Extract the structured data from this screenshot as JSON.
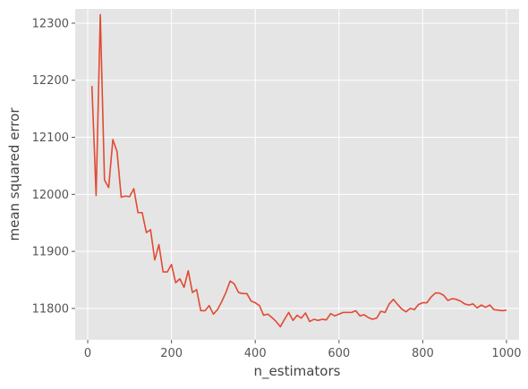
{
  "chart_data": {
    "type": "line",
    "title": "",
    "xlabel": "n_estimators",
    "ylabel": "mean squared error",
    "xlim": [
      -30,
      1030
    ],
    "ylim": [
      11745,
      12325
    ],
    "xticks": [
      0,
      200,
      400,
      600,
      800,
      1000
    ],
    "yticks": [
      11800,
      11900,
      12000,
      12100,
      12200,
      12300
    ],
    "grid": true,
    "legend": "none",
    "style": {
      "background": "#e5e5e5",
      "grid_color": "#ffffff",
      "line_color": "#e24a33"
    },
    "series": [
      {
        "x": [
          10,
          20,
          30,
          40,
          50,
          60,
          70,
          80,
          90,
          100,
          110,
          120,
          130,
          140,
          150,
          160,
          170,
          180,
          190,
          200,
          210,
          220,
          230,
          240,
          250,
          260,
          270,
          280,
          290,
          300,
          310,
          320,
          330,
          340,
          350,
          360,
          370,
          380,
          390,
          400,
          410,
          420,
          430,
          440,
          450,
          460,
          470,
          480,
          490,
          500,
          510,
          520,
          530,
          540,
          550,
          560,
          570,
          580,
          590,
          600,
          610,
          620,
          630,
          640,
          650,
          660,
          670,
          680,
          690,
          700,
          710,
          720,
          730,
          740,
          750,
          760,
          770,
          780,
          790,
          800,
          810,
          820,
          830,
          840,
          850,
          860,
          870,
          880,
          890,
          900,
          910,
          920,
          930,
          940,
          950,
          960,
          970,
          980,
          990,
          1000
        ],
        "values": [
          12190,
          11998,
          12315,
          12025,
          12012,
          12096,
          12075,
          11995,
          11997,
          11996,
          12010,
          11968,
          11968,
          11933,
          11938,
          11885,
          11912,
          11864,
          11864,
          11877,
          11845,
          11852,
          11837,
          11866,
          11828,
          11833,
          11796,
          11796,
          11805,
          11790,
          11798,
          11812,
          11828,
          11848,
          11843,
          11828,
          11826,
          11826,
          11813,
          11810,
          11805,
          11788,
          11790,
          11784,
          11777,
          11768,
          11781,
          11793,
          11779,
          11788,
          11783,
          11792,
          11777,
          11781,
          11779,
          11781,
          11780,
          11791,
          11787,
          11790,
          11793,
          11793,
          11793,
          11796,
          11787,
          11789,
          11784,
          11781,
          11783,
          11795,
          11793,
          11808,
          11816,
          11807,
          11799,
          11794,
          11800,
          11798,
          11807,
          11810,
          11810,
          11820,
          11827,
          11827,
          11823,
          11814,
          11817,
          11816,
          11813,
          11808,
          11806,
          11808,
          11801,
          11806,
          11802,
          11806,
          11798,
          11797,
          11796,
          11797
        ]
      }
    ]
  }
}
